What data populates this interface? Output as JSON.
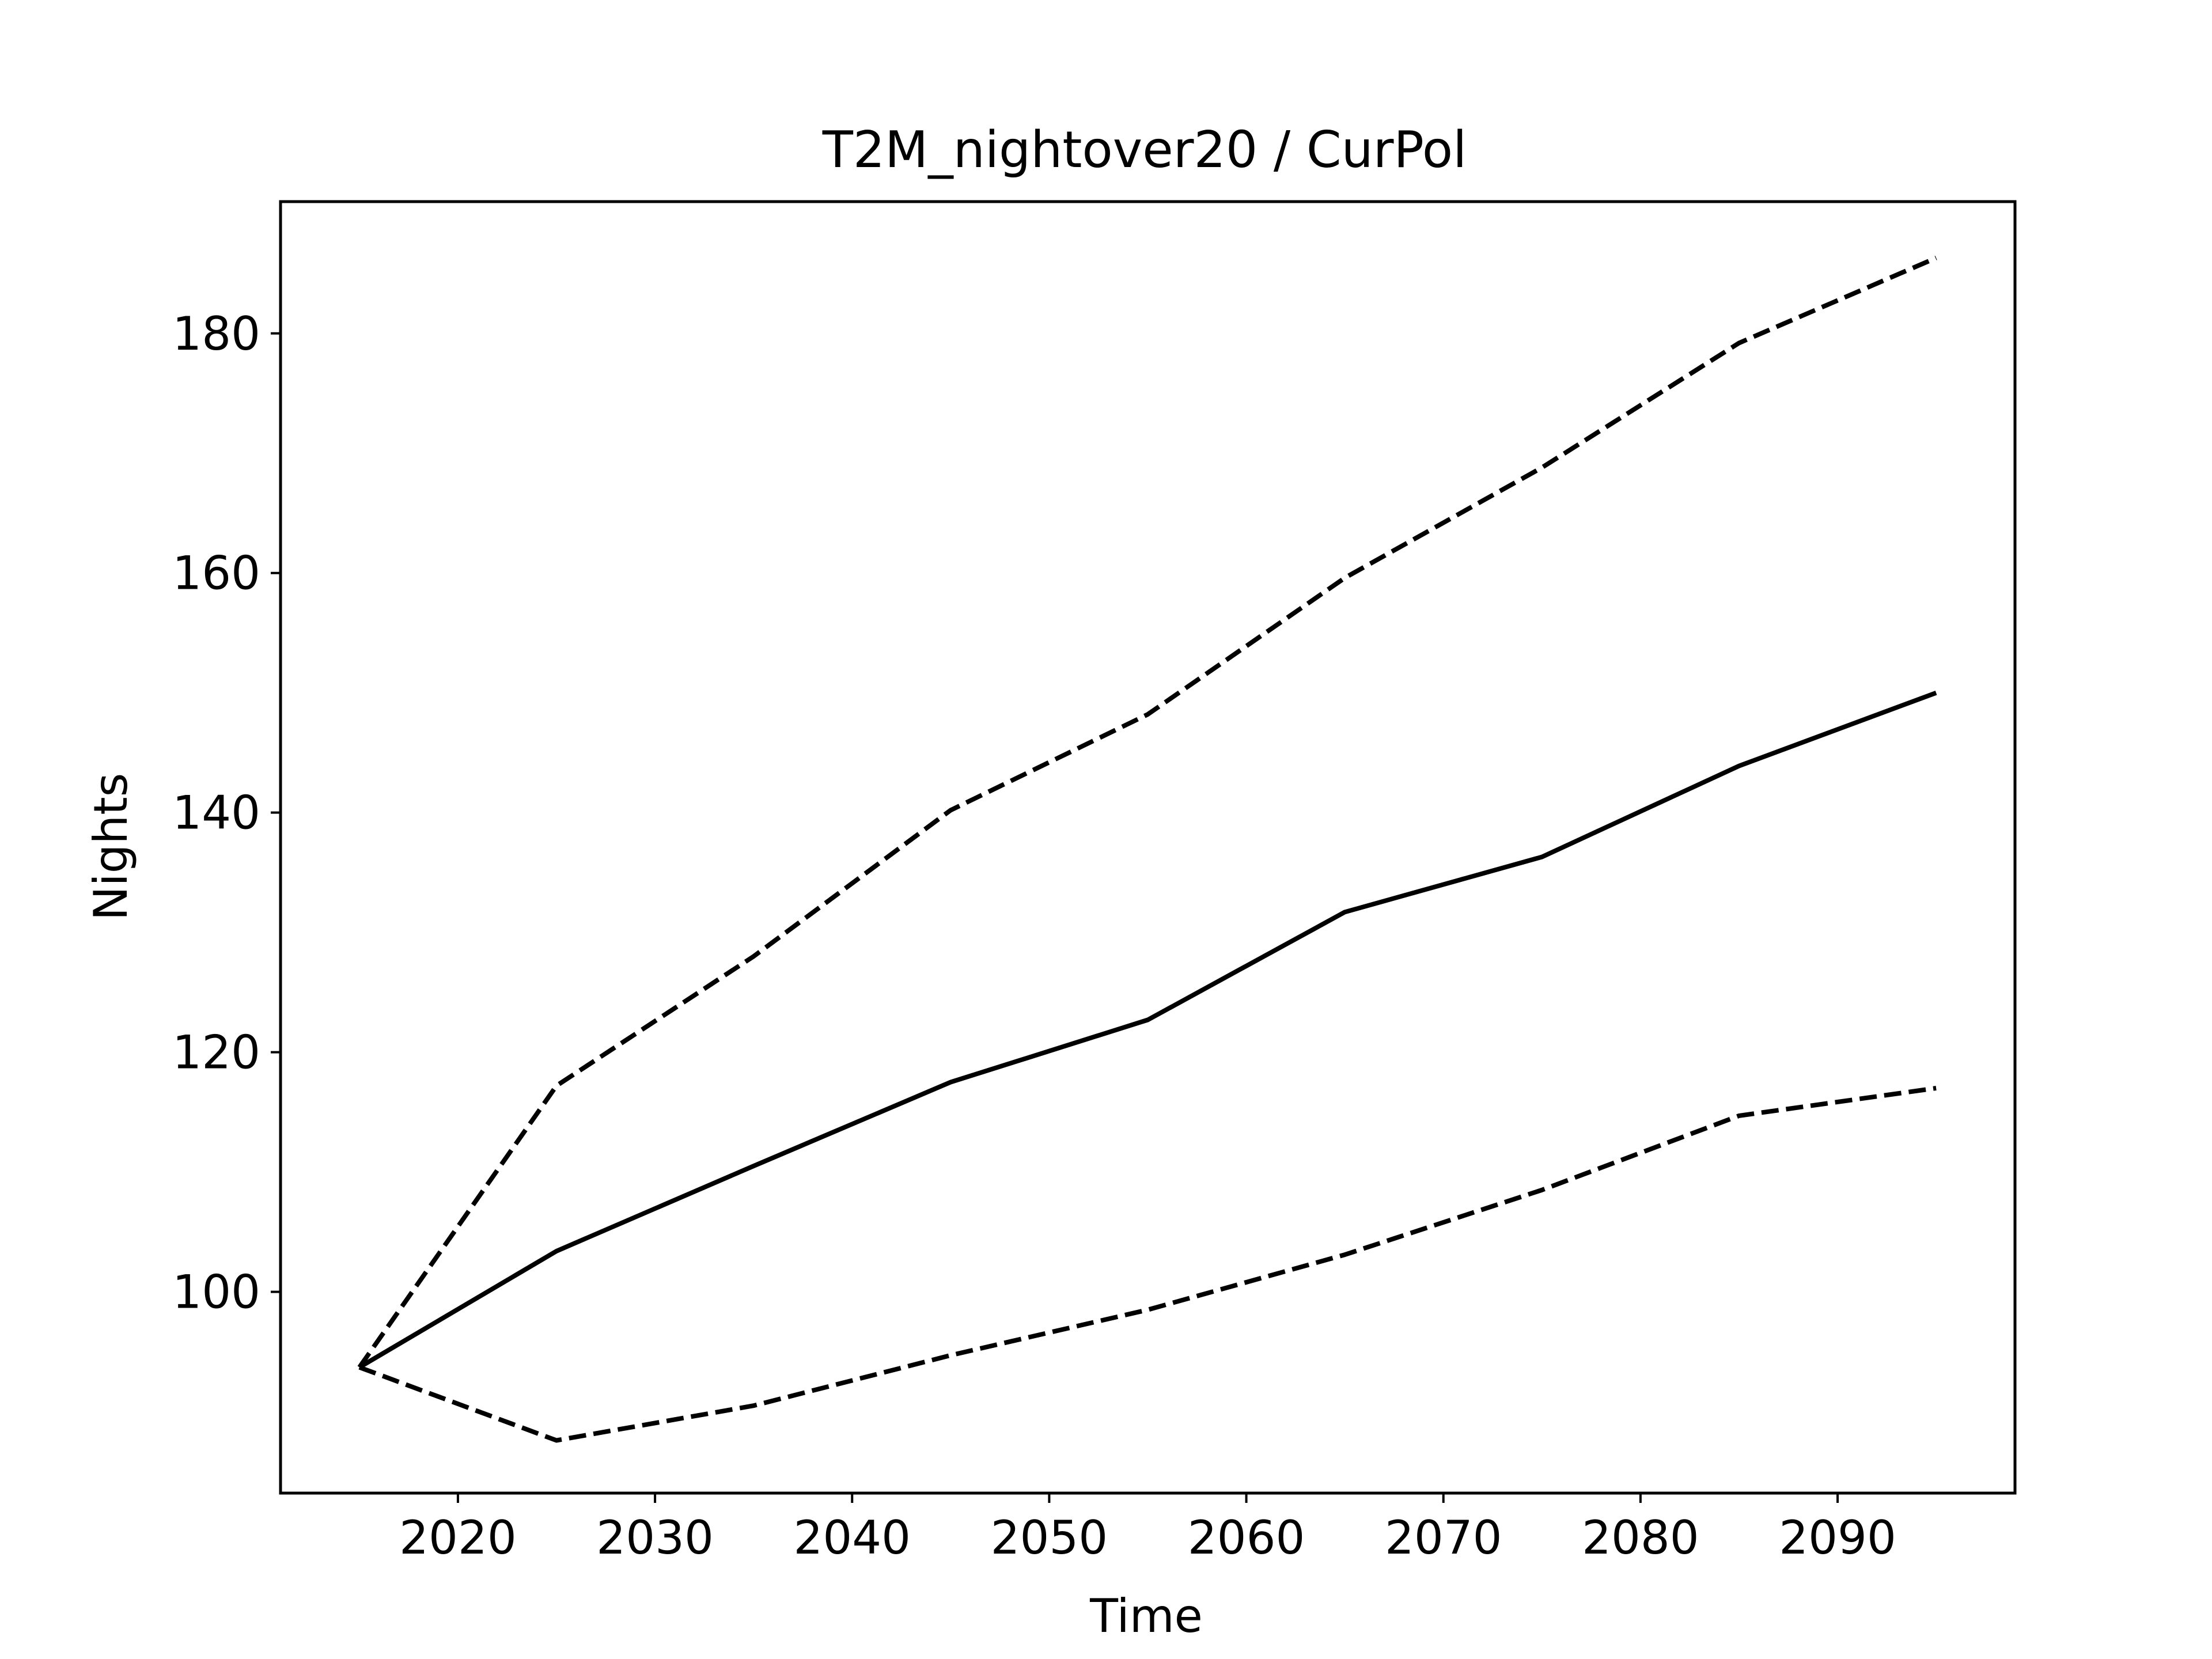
{
  "chart_data": {
    "type": "line",
    "title": "T2M_nightover20 / CurPol",
    "xlabel": "Time",
    "ylabel": "Nights",
    "xlim": [
      2011,
      2099
    ],
    "ylim": [
      83.2,
      191.0
    ],
    "x_ticks": [
      2020,
      2030,
      2040,
      2050,
      2060,
      2070,
      2080,
      2090
    ],
    "y_ticks": [
      100,
      120,
      140,
      160,
      180
    ],
    "grid": false,
    "legend": "none",
    "x": [
      2015,
      2025,
      2035,
      2045,
      2055,
      2065,
      2075,
      2085,
      2095
    ],
    "series": [
      {
        "style": "solid",
        "color": "#000000",
        "values": [
          93.7,
          103.4,
          110.5,
          117.5,
          122.7,
          131.7,
          136.3,
          143.9,
          150.0
        ]
      },
      {
        "style": "dashed",
        "color": "#000000",
        "values": [
          93.7,
          117.2,
          128.0,
          140.2,
          148.2,
          159.6,
          168.8,
          179.2,
          186.3
        ]
      },
      {
        "style": "dashed",
        "color": "#000000",
        "values": [
          93.7,
          87.6,
          90.5,
          94.7,
          98.5,
          103.1,
          108.5,
          114.7,
          117.0
        ]
      }
    ]
  }
}
